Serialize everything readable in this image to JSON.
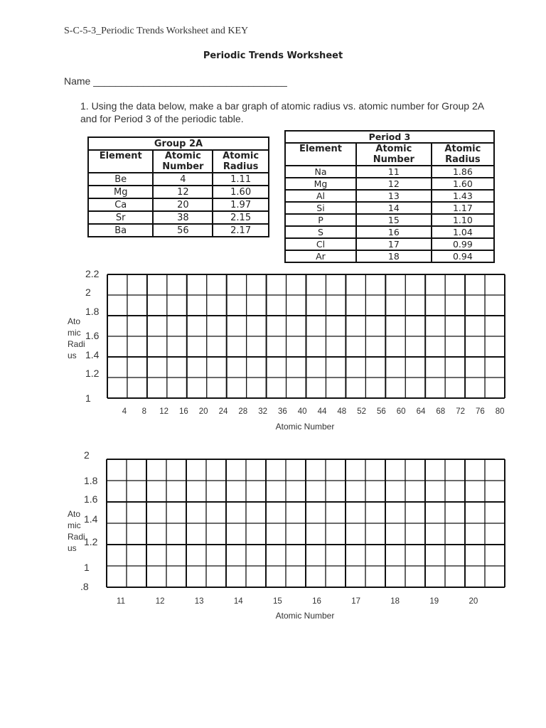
{
  "header": "S-C-5-3_Periodic Trends Worksheet and KEY",
  "title": "Periodic Trends Worksheet",
  "name_label": "Name ___________________________________",
  "question": "1.  Using the data below, make a bar graph of atomic radius vs. atomic number for Group 2A and for Period 3 of the periodic table.",
  "group2a": {
    "title": "Group 2A",
    "columns": [
      "Element",
      "Atomic Number",
      "Atomic Radius"
    ],
    "rows": [
      [
        "Be",
        "4",
        "1.11"
      ],
      [
        "Mg",
        "12",
        "1.60"
      ],
      [
        "Ca",
        "20",
        "1.97"
      ],
      [
        "Sr",
        "38",
        "2.15"
      ],
      [
        "Ba",
        "56",
        "2.17"
      ]
    ]
  },
  "period3": {
    "title": "Period 3",
    "columns": [
      "Element",
      "Atomic Number",
      "Atomic Radius"
    ],
    "rows": [
      [
        "Na",
        "11",
        "1.86"
      ],
      [
        "Mg",
        "12",
        "1.60"
      ],
      [
        "Al",
        "13",
        "1.43"
      ],
      [
        "Si",
        "14",
        "1.17"
      ],
      [
        "P",
        "15",
        "1.10"
      ],
      [
        "S",
        "16",
        "1.04"
      ],
      [
        "Cl",
        "17",
        "0.99"
      ],
      [
        "Ar",
        "18",
        "0.94"
      ]
    ]
  },
  "graph1": {
    "y_label": "Ato mic Radi us",
    "y_ticks": [
      "2.2",
      "2",
      "1.8",
      "1.6",
      "1.4",
      "1.2",
      "1"
    ],
    "x_ticks": [
      "4",
      "8",
      "12",
      "16",
      "20",
      "24",
      "28",
      "32",
      "36",
      "40",
      "44",
      "48",
      "52",
      "56",
      "60",
      "64",
      "68",
      "72",
      "76",
      "80"
    ],
    "x_label": "Atomic Number"
  },
  "graph2": {
    "y_label": "Ato mic Radi us",
    "y_ticks": [
      "2",
      "1.8",
      "1.6",
      "1.4",
      "1.2",
      "1",
      ".8"
    ],
    "x_ticks": [
      "11",
      "12",
      "13",
      "14",
      "15",
      "16",
      "17",
      "18",
      "19",
      "20"
    ],
    "x_label": "Atomic Number"
  }
}
